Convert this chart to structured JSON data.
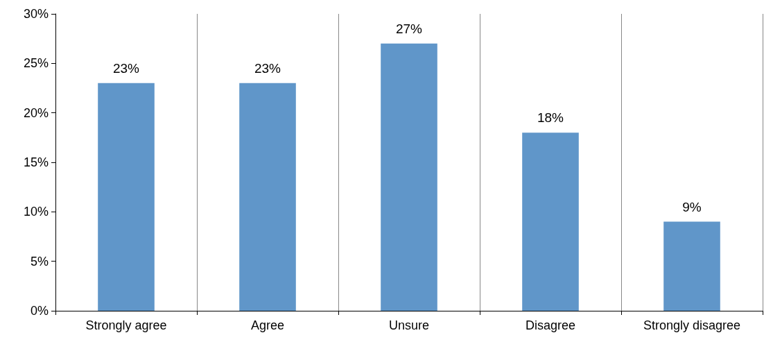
{
  "chart_data": {
    "type": "bar",
    "categories": [
      "Strongly agree",
      "Agree",
      "Unsure",
      "Disagree",
      "Strongly disagree"
    ],
    "values": [
      23,
      23,
      27,
      18,
      9
    ],
    "value_labels": [
      "23%",
      "23%",
      "27%",
      "18%",
      "9%"
    ],
    "color": "#6096c9",
    "ylim": [
      0,
      30
    ],
    "yticks": [
      {
        "value": 0,
        "label": "0%"
      },
      {
        "value": 5,
        "label": "5%"
      },
      {
        "value": 10,
        "label": "10%"
      },
      {
        "value": 15,
        "label": "15%"
      },
      {
        "value": 20,
        "label": "20%"
      },
      {
        "value": 25,
        "label": "25%"
      },
      {
        "value": 30,
        "label": "30%"
      }
    ],
    "grid": "x"
  }
}
